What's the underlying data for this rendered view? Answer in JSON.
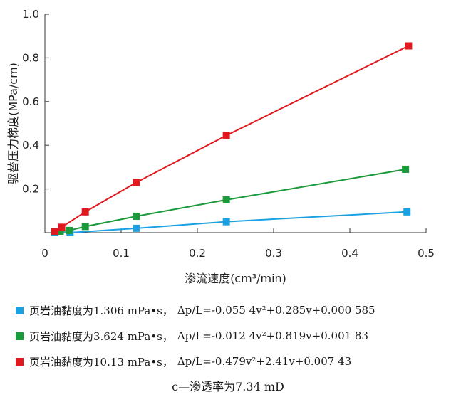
{
  "chart_data": {
    "type": "line",
    "xlabel": "渗流速度(cm³/min)",
    "ylabel": "驱替压力梯度(MPa/cm)",
    "xlim": [
      0,
      0.5
    ],
    "ylim": [
      0,
      1.0
    ],
    "x_ticks": [
      "0",
      "0.1",
      "0.2",
      "0.3",
      "0.4",
      "0.5"
    ],
    "y_ticks": [
      "0.2",
      "0.4",
      "0.6",
      "0.8",
      "1.0"
    ],
    "grid": false,
    "legend_position": "bottom",
    "series": [
      {
        "name": "页岩油黏度为1.306 mPa•s，",
        "equation": "Δp/L=-0.055 4v²+0.285v+0.000 585",
        "color": "#1ba1e2",
        "x": [
          0.013,
          0.033,
          0.12,
          0.238,
          0.475
        ],
        "y": [
          0.0,
          0.0,
          0.02,
          0.05,
          0.095
        ]
      },
      {
        "name": "页岩油黏度为3.624 mPa•s，",
        "equation": "Δp/L=-0.012 4v²+0.819v+0.001 83",
        "color": "#1a9a3a",
        "x": [
          0.02,
          0.032,
          0.053,
          0.12,
          0.238,
          0.473
        ],
        "y": [
          0.005,
          0.01,
          0.028,
          0.075,
          0.15,
          0.29
        ]
      },
      {
        "name": "页岩油黏度为10.13 mPa•s，",
        "equation": "Δp/L=-0.479v²+2.41v+0.007 43",
        "color": "#e0191f",
        "x": [
          0.013,
          0.022,
          0.053,
          0.12,
          0.238,
          0.477
        ],
        "y": [
          0.005,
          0.025,
          0.095,
          0.23,
          0.445,
          0.855
        ]
      }
    ]
  },
  "caption": "c—渗透率为7.34 mD"
}
